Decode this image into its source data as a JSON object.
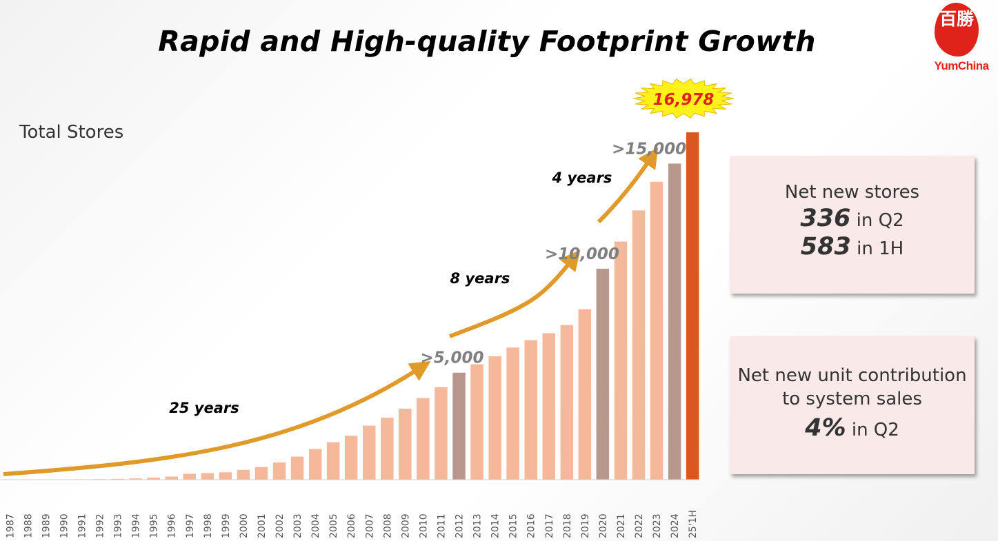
{
  "title": "Rapid and High-quality Footprint Growth",
  "logo": {
    "text": "YumChina",
    "glyphs": "百勝",
    "color": "#e0231a"
  },
  "total_label": "Total Stores",
  "info_boxes": {
    "net_new_stores": {
      "heading": "Net new stores",
      "q2_value": "336",
      "q2_suffix": "in Q2",
      "h1_value": "583",
      "h1_suffix": "in 1H"
    },
    "unit_contribution": {
      "heading_line1": "Net new unit contribution",
      "heading_line2": "to system sales",
      "value": "4%",
      "suffix": "in Q2"
    }
  },
  "colors": {
    "bar": "#f5b89a",
    "milestone_bar": "#b8978c",
    "latest_bar": "#d9581f",
    "arrow": "#e09a2a",
    "milestone_text": "#7f7f7f"
  },
  "chart_data": {
    "type": "bar",
    "categories": [
      "1987",
      "1988",
      "1989",
      "1990",
      "1991",
      "1992",
      "1993",
      "1994",
      "1995",
      "1996",
      "1997",
      "1998",
      "1999",
      "2000",
      "2001",
      "2002",
      "2003",
      "2004",
      "2005",
      "2006",
      "2007",
      "2008",
      "2009",
      "2010",
      "2011",
      "2012",
      "2013",
      "2014",
      "2015",
      "2016",
      "2017",
      "2018",
      "2019",
      "2020",
      "2021",
      "2022",
      "2023",
      "2024",
      "25'1H"
    ],
    "values": [
      1,
      4,
      8,
      13,
      19,
      27,
      40,
      60,
      100,
      150,
      290,
      320,
      360,
      480,
      620,
      840,
      1130,
      1500,
      1830,
      2150,
      2640,
      3030,
      3470,
      3990,
      4520,
      5230,
      5640,
      6030,
      6460,
      6820,
      7160,
      7560,
      8330,
      10310,
      11640,
      13160,
      14560,
      15450,
      16978
    ],
    "highlight": {
      "2012": "milestone",
      "2020": "milestone",
      "2024": "milestone",
      "25'1H": "latest"
    },
    "ylim": [
      0,
      17500
    ],
    "annotations": {
      "latest_total": "16,978",
      "milestones": [
        {
          "label": ">5,000",
          "at": "2012"
        },
        {
          "label": ">10,000",
          "at": "2020"
        },
        {
          "label": ">15,000",
          "at": "2024"
        }
      ],
      "periods": [
        {
          "label": "25 years"
        },
        {
          "label": "8 years"
        },
        {
          "label": "4 years"
        }
      ]
    }
  }
}
